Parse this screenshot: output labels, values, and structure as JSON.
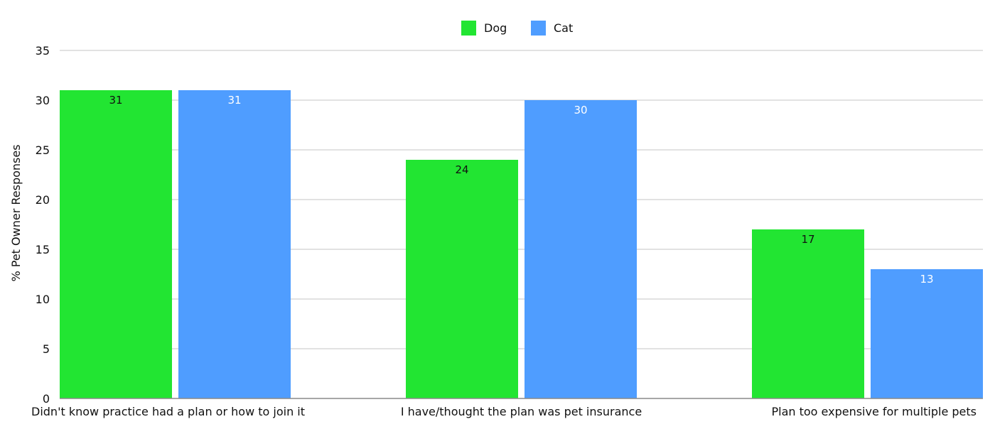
{
  "chart_data": {
    "type": "bar",
    "title": "",
    "xlabel": "",
    "ylabel": "% Pet Owner Responses",
    "ylim": [
      0,
      35
    ],
    "yticks": [
      0,
      5,
      10,
      15,
      20,
      25,
      30,
      35
    ],
    "grid": true,
    "legend_position": "top-center",
    "categories": [
      "Didn't know practice had a plan or how to join it",
      "I have/thought the plan was pet insurance",
      "Plan too expensive for multiple pets"
    ],
    "series": [
      {
        "name": "Dog",
        "values": [
          31,
          24,
          17
        ],
        "color": "#22e532",
        "label_color": "#111111"
      },
      {
        "name": "Cat",
        "values": [
          31,
          30,
          13
        ],
        "color": "#4f9dff",
        "label_color": "#ffffff"
      }
    ]
  }
}
